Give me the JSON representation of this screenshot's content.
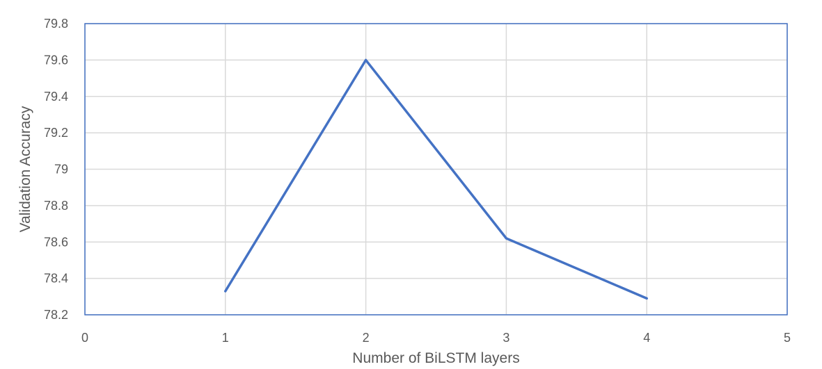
{
  "chart_data": {
    "type": "line",
    "title": "",
    "xlabel": "Number of BiLSTM layers",
    "ylabel": "Validation Accuracy",
    "xlim": [
      0,
      5
    ],
    "ylim": [
      78.2,
      79.8
    ],
    "x_ticks": [
      "0",
      "1",
      "2",
      "3",
      "4",
      "5"
    ],
    "y_ticks": [
      "78.2",
      "78.4",
      "78.6",
      "78.8",
      "79",
      "79.2",
      "79.4",
      "79.6",
      "79.8"
    ],
    "grid": true,
    "legend": "none",
    "series": [
      {
        "color": "#4472c4",
        "x": [
          1,
          2,
          3,
          4
        ],
        "y": [
          78.33,
          79.6,
          78.62,
          78.29
        ]
      }
    ]
  }
}
